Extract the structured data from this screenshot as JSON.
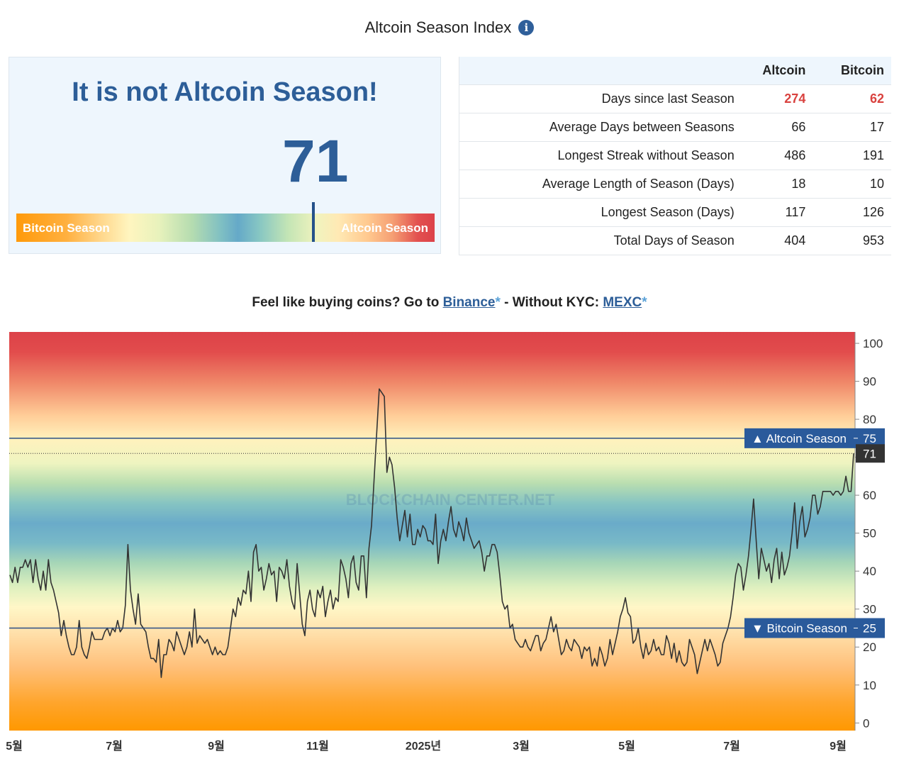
{
  "header": {
    "title": "Altcoin Season Index",
    "info_icon": "info-icon",
    "info_glyph": "i"
  },
  "status": {
    "headline": "It is not Altcoin Season!",
    "index_value": "71",
    "gauge_left_label": "Bitcoin Season",
    "gauge_right_label": "Altcoin Season",
    "gauge_value": 71
  },
  "stats": {
    "columns": [
      "",
      "Altcoin",
      "Bitcoin"
    ],
    "rows": [
      {
        "label": "Days since last Season",
        "altcoin": "274",
        "bitcoin": "62",
        "highlight": true
      },
      {
        "label": "Average Days between Seasons",
        "altcoin": "66",
        "bitcoin": "17"
      },
      {
        "label": "Longest Streak without Season",
        "altcoin": "486",
        "bitcoin": "191"
      },
      {
        "label": "Average Length of Season (Days)",
        "altcoin": "18",
        "bitcoin": "10"
      },
      {
        "label": "Longest Season (Days)",
        "altcoin": "117",
        "bitcoin": "126"
      },
      {
        "label": "Total Days of Season",
        "altcoin": "404",
        "bitcoin": "953"
      }
    ]
  },
  "promo": {
    "prefix": "Feel like buying coins? Go to ",
    "binance": "Binance",
    "asterisk": "*",
    "middle": " - Without KYC: ",
    "mexc": "MEXC"
  },
  "colors": {
    "brand_blue": "#2d5e98",
    "highlight_red": "#d9423f",
    "line": "#333333"
  },
  "chart_data": {
    "type": "line",
    "title": "",
    "xlabel": "",
    "ylabel": "",
    "ylim": [
      -2,
      103
    ],
    "yticks": [
      0,
      10,
      20,
      30,
      40,
      50,
      60,
      70,
      80,
      90,
      100
    ],
    "x_ticks": [
      "5월",
      "7월",
      "9월",
      "11월",
      "2025년",
      "3월",
      "5월",
      "7월",
      "9월"
    ],
    "watermark": "BLOCKCHAIN CENTER.NET",
    "grid": false,
    "thresholds": [
      {
        "name": "Altcoin Season",
        "value": 75,
        "arrow": "▲"
      },
      {
        "name": "Bitcoin Season",
        "value": 25,
        "arrow": "▼"
      }
    ],
    "current_value": 71,
    "series": [
      {
        "values": [
          39,
          37,
          41,
          37,
          41,
          41,
          43,
          41,
          43,
          37,
          43,
          38,
          35,
          40,
          35,
          43,
          37,
          35,
          32,
          29,
          23,
          27,
          23,
          20,
          18,
          18,
          20,
          27,
          20,
          18,
          17,
          20,
          24,
          22,
          22,
          22,
          22,
          24,
          25,
          23,
          25,
          24,
          27,
          24,
          25,
          31,
          47,
          35,
          30,
          26,
          34,
          26,
          25,
          24,
          20,
          17,
          17,
          16,
          22,
          12,
          18,
          18,
          22,
          21,
          19,
          24,
          22,
          20,
          18,
          20,
          24,
          20,
          30,
          21,
          23,
          22,
          21,
          22,
          20,
          18,
          20,
          18,
          19,
          18,
          18,
          20,
          25,
          30,
          28,
          33,
          31,
          35,
          34,
          40,
          32,
          45,
          47,
          40,
          41,
          35,
          38,
          42,
          39,
          40,
          32,
          41,
          40,
          38,
          43,
          36,
          32,
          30,
          42,
          34,
          26,
          23,
          32,
          35,
          30,
          28,
          35,
          33,
          36,
          28,
          32,
          35,
          30,
          33,
          32,
          43,
          41,
          38,
          33,
          42,
          44,
          37,
          35,
          44,
          44,
          33,
          46,
          52,
          64,
          76,
          88,
          87,
          86,
          66,
          70,
          68,
          62,
          54,
          48,
          52,
          56,
          49,
          55,
          47,
          47,
          51,
          49,
          52,
          51,
          48,
          48,
          47,
          55,
          42,
          48,
          51,
          48,
          53,
          57,
          51,
          49,
          53,
          51,
          48,
          54,
          50,
          48,
          46,
          47,
          48,
          45,
          40,
          44,
          44,
          47,
          47,
          45,
          39,
          32,
          30,
          31,
          25,
          26,
          22,
          21,
          20,
          20,
          22,
          20,
          19,
          21,
          23,
          23,
          19,
          21,
          22,
          25,
          28,
          24,
          26,
          22,
          18,
          19,
          22,
          20,
          19,
          22,
          21,
          20,
          17,
          20,
          19,
          20,
          15,
          17,
          15,
          20,
          18,
          15,
          17,
          22,
          18,
          21,
          24,
          28,
          30,
          33,
          29,
          28,
          21,
          22,
          25,
          20,
          17,
          21,
          18,
          19,
          22,
          19,
          20,
          18,
          18,
          23,
          21,
          17,
          21,
          16,
          19,
          16,
          15,
          16,
          22,
          20,
          18,
          13,
          16,
          19,
          22,
          19,
          22,
          20,
          18,
          15,
          16,
          21,
          23,
          25,
          28,
          33,
          39,
          42,
          41,
          35,
          39,
          44,
          51,
          59,
          48,
          38,
          46,
          43,
          40,
          42,
          37,
          43,
          46,
          38,
          45,
          39,
          41,
          44,
          50,
          58,
          46,
          53,
          57,
          49,
          51,
          54,
          60,
          60,
          55,
          57,
          61,
          61,
          61,
          61,
          60,
          61,
          61,
          60,
          61,
          65,
          61,
          61,
          71
        ]
      }
    ]
  }
}
